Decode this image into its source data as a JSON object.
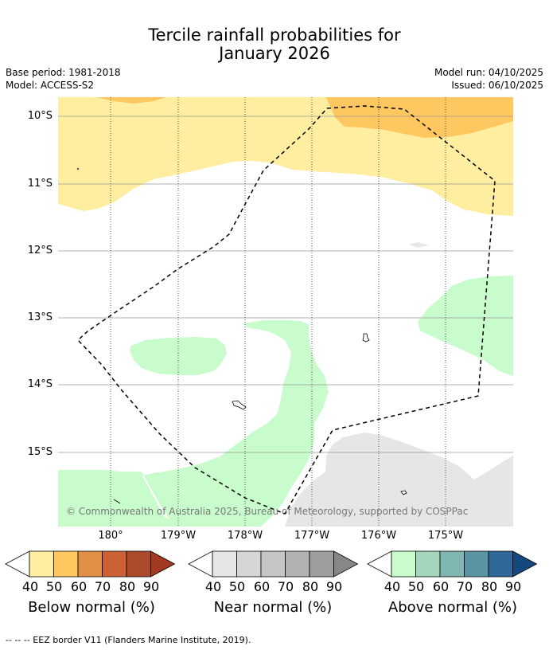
{
  "title": {
    "line1": "Tercile rainfall probabilities for",
    "line2": "January 2026"
  },
  "meta": {
    "base_period": "Base period: 1981-2018",
    "model": "Model: ACCESS-S2",
    "model_run": "Model run: 04/10/2025",
    "issued": "Issued: 06/10/2025"
  },
  "map": {
    "lat_labels": [
      "10°S",
      "11°S",
      "12°S",
      "13°S",
      "14°S",
      "15°S"
    ],
    "lon_labels": [
      "180°",
      "179°W",
      "178°W",
      "177°W",
      "176°W",
      "175°W"
    ],
    "copyright": "© Commonwealth of Australia 2025, Bureau of Meteorology, supported by COSPPac"
  },
  "colorbars": [
    {
      "title": "Below normal (%)",
      "ticks": [
        "40",
        "50",
        "60",
        "70",
        "80",
        "90"
      ],
      "colors": [
        "#ffffff",
        "#ffeda0",
        "#fec75f",
        "#e08f45",
        "#cb6234",
        "#ad4a2a",
        "#a23a22"
      ]
    },
    {
      "title": "Near normal (%)",
      "ticks": [
        "40",
        "50",
        "60",
        "70",
        "80",
        "90"
      ],
      "colors": [
        "#ffffff",
        "#e6e6e6",
        "#d6d6d6",
        "#c6c6c6",
        "#b2b2b2",
        "#9e9e9e",
        "#878787"
      ]
    },
    {
      "title": "Above normal (%)",
      "ticks": [
        "40",
        "50",
        "60",
        "70",
        "80",
        "90"
      ],
      "colors": [
        "#ffffff",
        "#c8fccc",
        "#a4d6bc",
        "#7fb6b2",
        "#5b93a3",
        "#2f6899",
        "#15497d"
      ]
    }
  ],
  "legend": {
    "eez": "--  --  -- EEZ border V11 (Flanders Marine Institute, 2019)."
  }
}
